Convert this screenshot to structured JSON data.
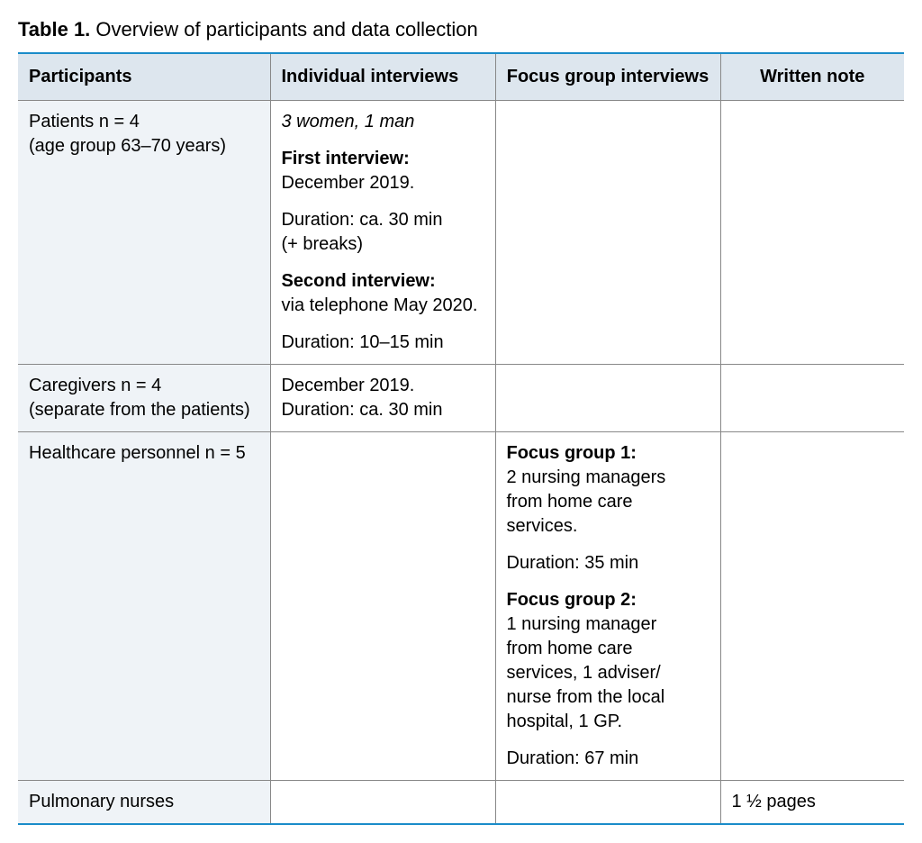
{
  "title_label": "Table 1.",
  "title_text": "Overview of participants and data collection",
  "columns": [
    "Participants",
    "Individual interviews",
    "Focus group interviews",
    "Written note"
  ],
  "rows": {
    "r1": {
      "participant_line1": "Patients n = 4",
      "participant_line2": "(age group 63–70 years)",
      "iv_italic": "3 women, 1 man",
      "iv_first_label": "First interview:",
      "iv_first_date": "December 2019.",
      "iv_first_dur1": "Duration: ca. 30 min",
      "iv_first_dur2": "(+ breaks)",
      "iv_second_label": "Second interview:",
      "iv_second_line": "via telephone May 2020.",
      "iv_second_dur": "Duration: 10–15 min"
    },
    "r2": {
      "participant_line1": "Caregivers n = 4",
      "participant_line2": "(separate from the patients)",
      "iv_line1": "December 2019.",
      "iv_line2": "Duration: ca. 30 min"
    },
    "r3": {
      "participant_line1": "Healthcare personnel n = 5",
      "fg1_label": "Focus group 1:",
      "fg1_line1": "2 nursing managers",
      "fg1_line2": "from home care",
      "fg1_line3": "services.",
      "fg1_dur": "Duration: 35 min",
      "fg2_label": "Focus group 2:",
      "fg2_line1": "1 nursing manager",
      "fg2_line2": "from home care",
      "fg2_line3": "services, 1 adviser/",
      "fg2_line4": "nurse from the local",
      "fg2_line5": "hospital, 1 GP.",
      "fg2_dur": "Duration: 67 min"
    },
    "r4": {
      "participant_line1": "Pulmonary nurses",
      "note": "1 ½ pages"
    }
  }
}
